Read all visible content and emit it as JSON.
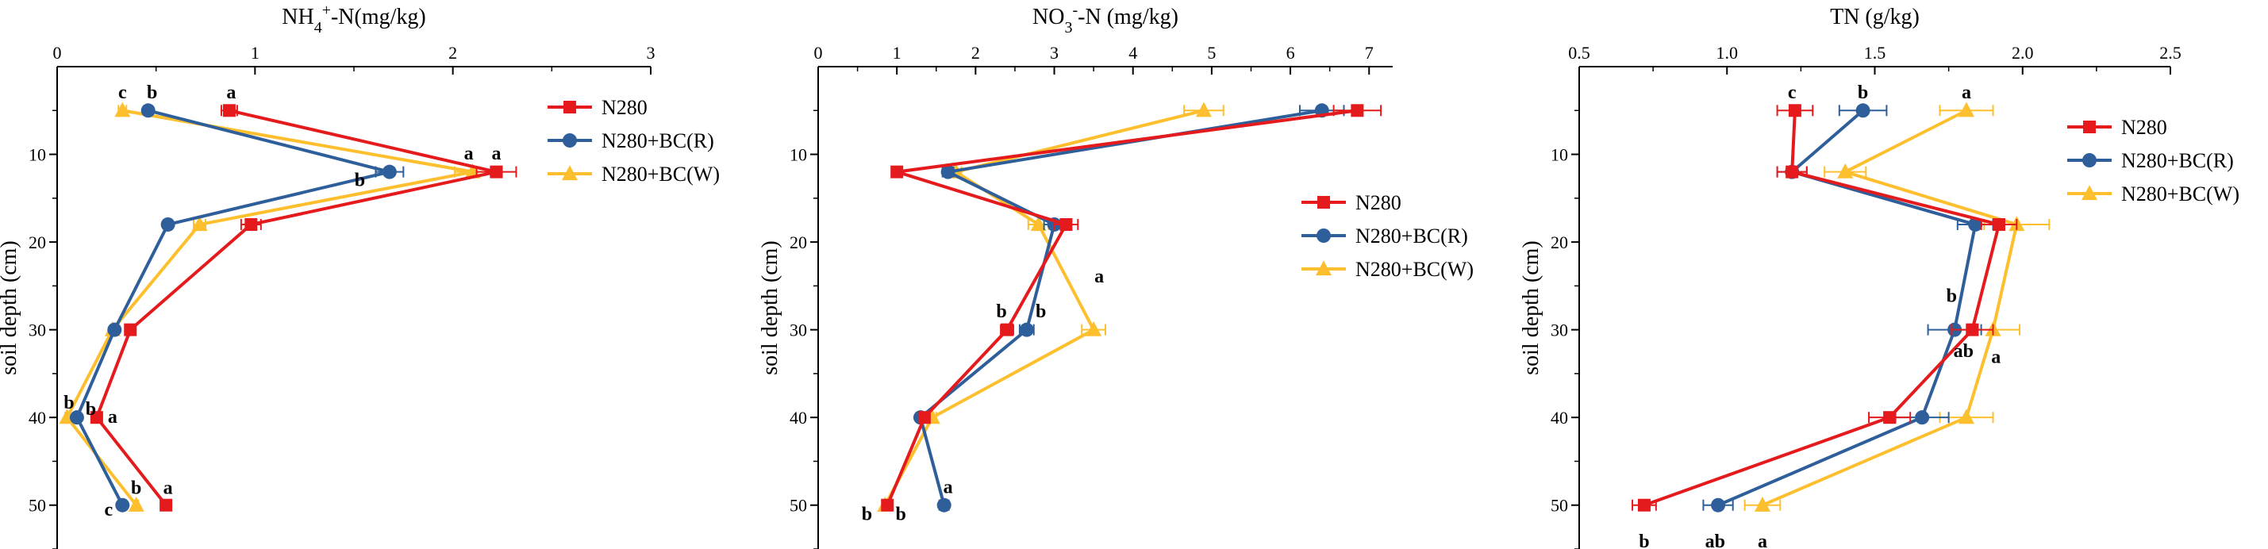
{
  "colors": {
    "N280": "#e41a1c",
    "N280+BC(R)": "#2f5f9a",
    "N280+BC(W)": "#fdbf2d",
    "axis": "#000000"
  },
  "chart_data": [
    {
      "type": "line",
      "title": "NH4+-N(mg/kg)",
      "title_parts": {
        "base1": "NH",
        "sub": "4",
        "sup": "+",
        "rest": "-N(mg/kg)"
      },
      "ylabel": "soil depth (cm)",
      "xlim": [
        0,
        3
      ],
      "xticks": [
        0,
        1,
        2,
        3
      ],
      "xtick_labels": [
        "0",
        "1",
        "2",
        "3"
      ],
      "ylim": [
        55,
        0
      ],
      "yticks": [
        10,
        20,
        30,
        40,
        50
      ],
      "ytick_labels": [
        "10",
        "20",
        "30",
        "40",
        "50"
      ],
      "depth": [
        5,
        12,
        18,
        30,
        40,
        50
      ],
      "series": [
        {
          "name": "N280",
          "marker": "square",
          "values": [
            0.87,
            2.22,
            0.98,
            0.37,
            0.2,
            0.55
          ],
          "errors": [
            0.04,
            0.1,
            0.05,
            0.02,
            0.01,
            0.02
          ]
        },
        {
          "name": "N280+BC(R)",
          "marker": "circle",
          "values": [
            0.46,
            1.68,
            0.56,
            0.29,
            0.1,
            0.33
          ],
          "errors": [
            0.02,
            0.07,
            0.02,
            0.01,
            0.01,
            0.01
          ]
        },
        {
          "name": "N280+BC(W)",
          "marker": "triangle",
          "values": [
            0.33,
            2.1,
            0.72,
            0.28,
            0.05,
            0.4
          ],
          "errors": [
            0.02,
            0.09,
            0.03,
            0.01,
            0.01,
            0.01
          ]
        }
      ],
      "annotations": [
        {
          "text": "c",
          "x": 0.33,
          "y": 3.6
        },
        {
          "text": "b",
          "x": 0.48,
          "y": 3.6
        },
        {
          "text": "a",
          "x": 0.88,
          "y": 3.6
        },
        {
          "text": "a",
          "x": 2.08,
          "y": 10.6
        },
        {
          "text": "a",
          "x": 2.22,
          "y": 10.6
        },
        {
          "text": "b",
          "x": 1.53,
          "y": 13.6
        },
        {
          "text": "b",
          "x": 0.06,
          "y": 39.0
        },
        {
          "text": "b",
          "x": 0.17,
          "y": 39.7
        },
        {
          "text": "a",
          "x": 0.28,
          "y": 40.6
        },
        {
          "text": "b",
          "x": 0.4,
          "y": 48.7
        },
        {
          "text": "a",
          "x": 0.56,
          "y": 48.7
        },
        {
          "text": "c",
          "x": 0.26,
          "y": 51.2
        }
      ],
      "legend": {
        "placement": "top-right",
        "entries": [
          "N280",
          "N280+BC(R)",
          "N280+BC(W)"
        ]
      }
    },
    {
      "type": "line",
      "title": "NO3--N (mg/kg)",
      "title_parts": {
        "base1": "NO",
        "sub": "3",
        "sup": "-",
        "rest": "-N (mg/kg)"
      },
      "ylabel": "soil depth (cm)",
      "xlim": [
        0,
        7.3
      ],
      "xticks": [
        0,
        1,
        2,
        3,
        4,
        5,
        6,
        7
      ],
      "xtick_labels": [
        "0",
        "1",
        "2",
        "3",
        "4",
        "5",
        "6",
        "7"
      ],
      "ylim": [
        55,
        0
      ],
      "yticks": [
        10,
        20,
        30,
        40,
        50
      ],
      "ytick_labels": [
        "10",
        "20",
        "30",
        "40",
        "50"
      ],
      "depth": [
        5,
        12,
        18,
        30,
        40,
        50
      ],
      "series": [
        {
          "name": "N280",
          "marker": "square",
          "values": [
            6.85,
            1.0,
            3.15,
            2.4,
            1.35,
            0.88
          ],
          "errors": [
            0.3,
            0.04,
            0.15,
            0.08,
            0.05,
            0.04
          ]
        },
        {
          "name": "N280+BC(R)",
          "marker": "circle",
          "values": [
            6.4,
            1.65,
            3.0,
            2.65,
            1.3,
            1.6
          ],
          "errors": [
            0.28,
            0.07,
            0.13,
            0.09,
            0.05,
            0.06
          ]
        },
        {
          "name": "N280+BC(W)",
          "marker": "triangle",
          "values": [
            4.9,
            1.75,
            2.8,
            3.5,
            1.45,
            0.85
          ],
          "errors": [
            0.25,
            0.07,
            0.13,
            0.15,
            0.05,
            0.04
          ]
        }
      ],
      "annotations": [
        {
          "text": "b",
          "x": 2.33,
          "y": 28.6
        },
        {
          "text": "b",
          "x": 2.83,
          "y": 28.6
        },
        {
          "text": "a",
          "x": 3.57,
          "y": 24.6
        },
        {
          "text": "a",
          "x": 1.65,
          "y": 48.6
        },
        {
          "text": "b",
          "x": 0.62,
          "y": 51.7
        },
        {
          "text": "b",
          "x": 1.05,
          "y": 51.7
        }
      ],
      "legend": {
        "placement": "top-right",
        "entries": [
          "N280",
          "N280+BC(R)",
          "N280+BC(W)"
        ]
      }
    },
    {
      "type": "line",
      "title": "TN (g/kg)",
      "ylabel": "soil depth (cm)",
      "xlim": [
        0.5,
        2.5
      ],
      "xticks": [
        0.5,
        1.0,
        1.5,
        2.0,
        2.5
      ],
      "xtick_labels": [
        "0.5",
        "1.0",
        "1.5",
        "2.0",
        "2.5"
      ],
      "ylim": [
        55,
        0
      ],
      "yticks": [
        10,
        20,
        30,
        40,
        50
      ],
      "ytick_labels": [
        "10",
        "20",
        "30",
        "40",
        "50"
      ],
      "depth": [
        5,
        12,
        18,
        30,
        40,
        50
      ],
      "series": [
        {
          "name": "N280",
          "marker": "square",
          "values": [
            1.23,
            1.22,
            1.92,
            1.83,
            1.55,
            0.72
          ],
          "errors": [
            0.06,
            0.05,
            0.06,
            0.07,
            0.07,
            0.04
          ]
        },
        {
          "name": "N280+BC(R)",
          "marker": "circle",
          "values": [
            1.46,
            1.22,
            1.84,
            1.77,
            1.66,
            0.97
          ],
          "errors": [
            0.08,
            0.05,
            0.06,
            0.09,
            0.09,
            0.05
          ]
        },
        {
          "name": "N280+BC(W)",
          "marker": "triangle",
          "values": [
            1.81,
            1.4,
            1.98,
            1.9,
            1.81,
            1.12
          ],
          "errors": [
            0.09,
            0.07,
            0.11,
            0.09,
            0.09,
            0.06
          ]
        }
      ],
      "annotations": [
        {
          "text": "c",
          "x": 1.22,
          "y": 3.6
        },
        {
          "text": "b",
          "x": 1.46,
          "y": 3.6
        },
        {
          "text": "a",
          "x": 1.81,
          "y": 3.6
        },
        {
          "text": "b",
          "x": 1.76,
          "y": 26.8
        },
        {
          "text": "ab",
          "x": 1.8,
          "y": 33.1
        },
        {
          "text": "a",
          "x": 1.91,
          "y": 33.8
        },
        {
          "text": "b",
          "x": 0.72,
          "y": 54.8
        },
        {
          "text": "ab",
          "x": 0.96,
          "y": 54.8
        },
        {
          "text": "a",
          "x": 1.12,
          "y": 54.8
        }
      ],
      "legend": {
        "placement": "top-right",
        "entries": [
          "N280",
          "N280+BC(R)",
          "N280+BC(W)"
        ]
      }
    }
  ]
}
